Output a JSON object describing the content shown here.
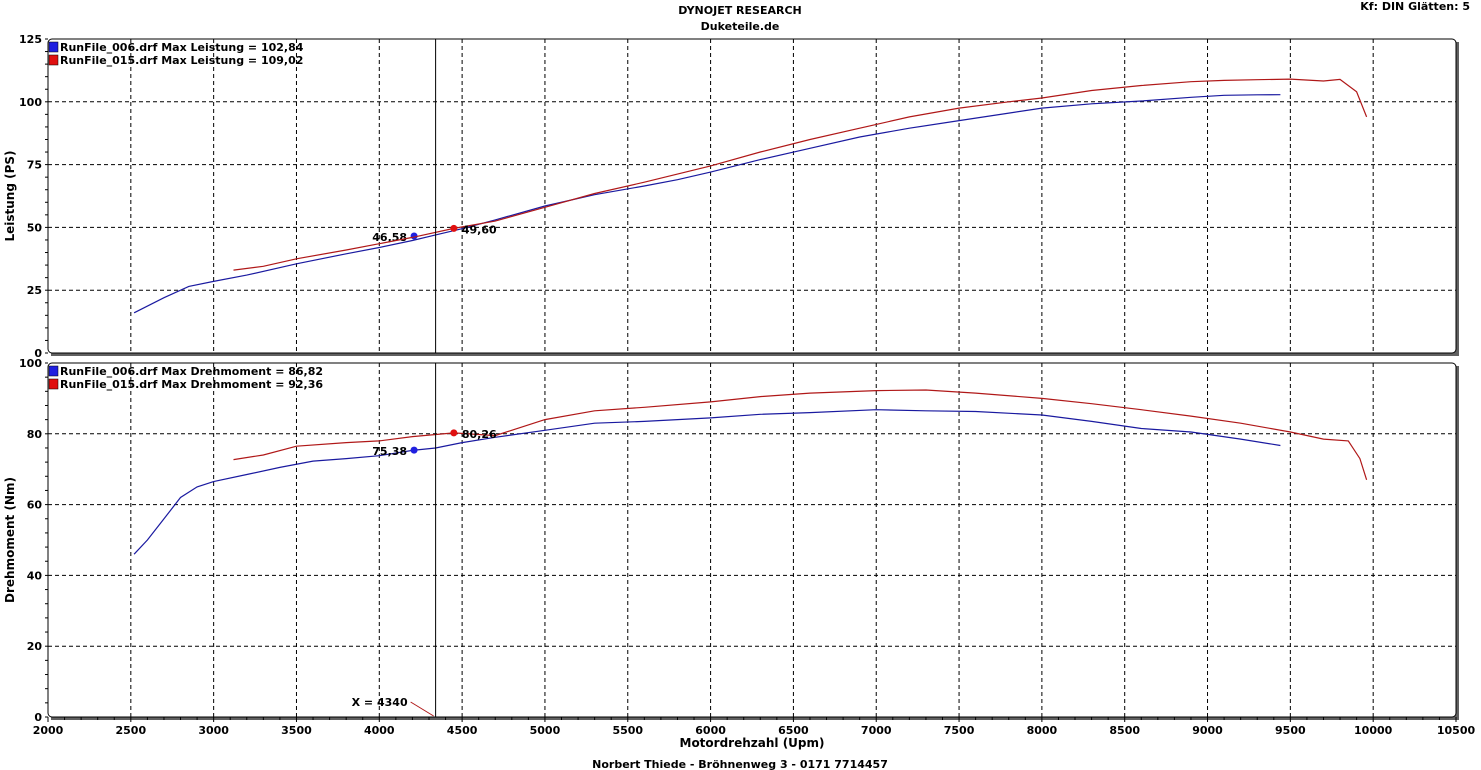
{
  "header": {
    "title": "DYNOJET RESEARCH",
    "subtitle": "Duketeile.de",
    "settings": "Kf: DIN  Glätten: 5"
  },
  "footer": {
    "text": "Norbert Thiede - Bröhnenweg 3 - 0171 7714457"
  },
  "cursor": {
    "label": "X = 4340",
    "x": 4340
  },
  "chart_data": [
    {
      "type": "line",
      "ylabel": "Leistung (PS)",
      "xlabel": "Motordrehzahl (Upm)",
      "xlim": [
        2000,
        10500
      ],
      "ylim": [
        0,
        125
      ],
      "yticks": [
        0,
        25,
        50,
        75,
        100,
        125
      ],
      "grid": true,
      "legend": "top-left",
      "series": [
        {
          "name": "RunFile_006.drf Max Leistung = 102,84",
          "color": "#1a1aa0",
          "marker_color": "#2020e0",
          "marker": {
            "x": 4210,
            "y": 46.58,
            "label": "46,58"
          },
          "x": [
            2520,
            2700,
            2850,
            3000,
            3200,
            3500,
            3800,
            4000,
            4200,
            4340,
            4500,
            4700,
            5000,
            5300,
            5600,
            5800,
            6000,
            6300,
            6600,
            6900,
            7200,
            7500,
            7800,
            8000,
            8300,
            8600,
            8900,
            9100,
            9300,
            9440
          ],
          "y": [
            16,
            22,
            26.5,
            28.5,
            31,
            35.5,
            39.5,
            42,
            44.8,
            47,
            49.5,
            53,
            58.5,
            63,
            66.5,
            69,
            72,
            77,
            81.5,
            86,
            89.5,
            92.5,
            95.5,
            97.5,
            99.2,
            100.3,
            101.8,
            102.6,
            102.8,
            102.84
          ]
        },
        {
          "name": "RunFile_015.drf Max Leistung = 109,02",
          "color": "#b01818",
          "marker_color": "#e01010",
          "marker": {
            "x": 4450,
            "y": 49.6,
            "label": "49,60"
          },
          "x": [
            3120,
            3300,
            3500,
            3800,
            4000,
            4200,
            4450,
            4700,
            5000,
            5300,
            5600,
            6000,
            6300,
            6600,
            6900,
            7200,
            7500,
            7800,
            8000,
            8300,
            8600,
            8900,
            9100,
            9300,
            9500,
            9700,
            9800,
            9900,
            9960
          ],
          "y": [
            33,
            34.5,
            37.5,
            41,
            43.5,
            46,
            49.6,
            52.5,
            58,
            63.5,
            68,
            74.5,
            80,
            85,
            89.5,
            94,
            97.5,
            100,
            101.5,
            104.5,
            106.5,
            108,
            108.5,
            108.8,
            109.02,
            108.3,
            108.9,
            104,
            94
          ]
        }
      ]
    },
    {
      "type": "line",
      "ylabel": "Drehmoment (Nm)",
      "xlabel": "Motordrehzahl (Upm)",
      "xlim": [
        2000,
        10500
      ],
      "ylim": [
        0,
        100
      ],
      "yticks": [
        0,
        20,
        40,
        60,
        80,
        100
      ],
      "grid": true,
      "legend": "top-left",
      "series": [
        {
          "name": "RunFile_006.drf Max Drehmoment = 86,82",
          "color": "#1a1aa0",
          "marker_color": "#2020e0",
          "marker": {
            "x": 4210,
            "y": 75.38,
            "label": "75,38"
          },
          "x": [
            2520,
            2600,
            2700,
            2800,
            2900,
            3000,
            3200,
            3400,
            3600,
            3800,
            4000,
            4200,
            4340,
            4500,
            4700,
            5000,
            5300,
            5600,
            6000,
            6300,
            6600,
            7000,
            7300,
            7600,
            8000,
            8300,
            8600,
            8900,
            9200,
            9440
          ],
          "y": [
            46,
            50,
            56,
            62,
            65,
            66.5,
            68.5,
            70.5,
            72.3,
            73,
            73.8,
            75.3,
            76,
            77.5,
            79,
            81,
            83,
            83.5,
            84.5,
            85.5,
            86,
            86.82,
            86.5,
            86.3,
            85.3,
            83.5,
            81.5,
            80.5,
            78.5,
            76.7
          ]
        },
        {
          "name": "RunFile_015.drf Max Drehmoment = 92,36",
          "color": "#b01818",
          "marker_color": "#e01010",
          "marker": {
            "x": 4450,
            "y": 80.26,
            "label": "80,26"
          },
          "x": [
            3120,
            3300,
            3500,
            3800,
            4000,
            4200,
            4450,
            4700,
            5000,
            5300,
            5600,
            6000,
            6300,
            6600,
            7000,
            7300,
            7600,
            8000,
            8300,
            8600,
            8900,
            9200,
            9500,
            9700,
            9850,
            9920,
            9960
          ],
          "y": [
            72.7,
            74,
            76.5,
            77.5,
            78,
            79.2,
            80.26,
            79.5,
            84,
            86.5,
            87.5,
            89,
            90.5,
            91.5,
            92.2,
            92.36,
            91.5,
            90,
            88.5,
            86.8,
            85,
            83,
            80.5,
            78.5,
            78,
            73,
            67
          ]
        }
      ]
    }
  ]
}
